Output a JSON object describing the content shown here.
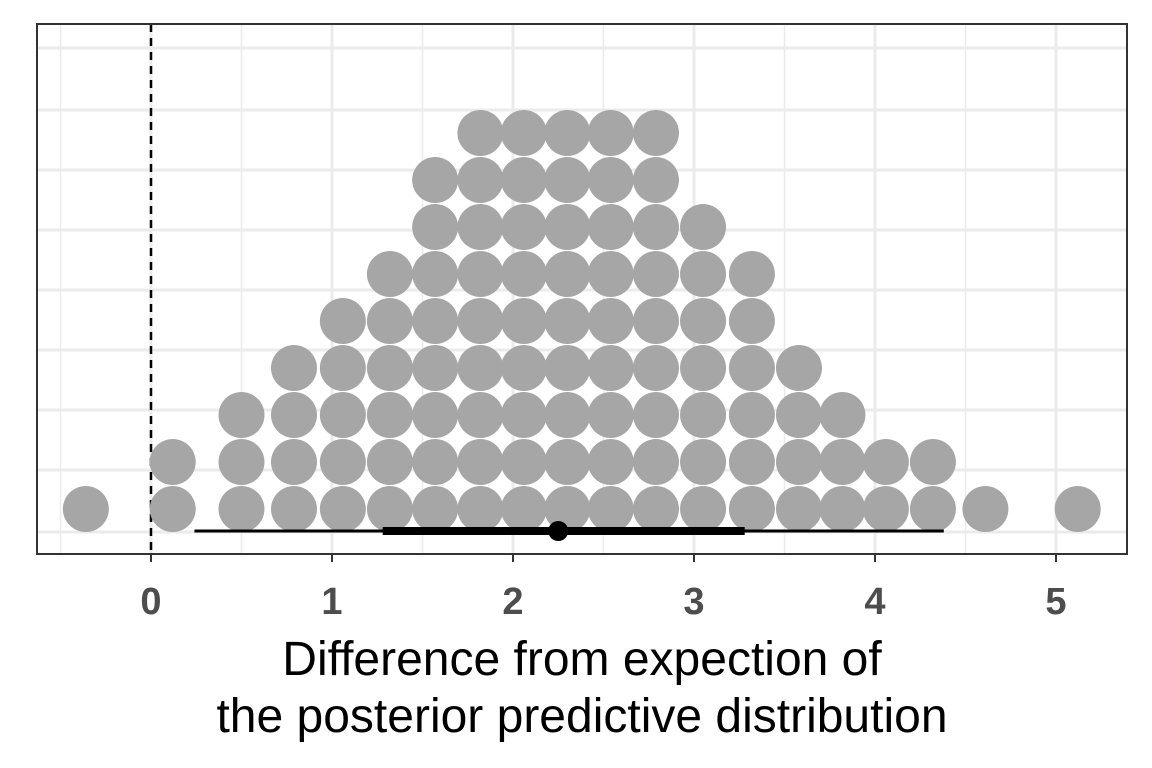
{
  "chart_data": {
    "type": "dotplot",
    "xlabel_lines": [
      "Difference from expection of",
      "the posterior predictive distribution"
    ],
    "xlim": [
      -0.5,
      5.4
    ],
    "x_ticks": [
      0,
      1,
      2,
      3,
      4,
      5
    ],
    "x_tick_labels": [
      "0",
      "1",
      "2",
      "3",
      "4",
      "5"
    ],
    "reference_line": {
      "x": 0,
      "style": "dashed"
    },
    "grid": true,
    "dot_color": "#a6a6a6",
    "stacks": [
      {
        "x": -0.36,
        "count": 1
      },
      {
        "x": 0.12,
        "count": 2
      },
      {
        "x": 0.5,
        "count": 3
      },
      {
        "x": 0.79,
        "count": 4
      },
      {
        "x": 1.06,
        "count": 5
      },
      {
        "x": 1.32,
        "count": 6
      },
      {
        "x": 1.57,
        "count": 8
      },
      {
        "x": 1.82,
        "count": 9
      },
      {
        "x": 2.06,
        "count": 9
      },
      {
        "x": 2.3,
        "count": 9
      },
      {
        "x": 2.54,
        "count": 9
      },
      {
        "x": 2.79,
        "count": 9
      },
      {
        "x": 3.05,
        "count": 7
      },
      {
        "x": 3.32,
        "count": 6
      },
      {
        "x": 3.58,
        "count": 4
      },
      {
        "x": 3.82,
        "count": 3
      },
      {
        "x": 4.06,
        "count": 2
      },
      {
        "x": 4.32,
        "count": 2
      },
      {
        "x": 4.61,
        "count": 1
      },
      {
        "x": 5.12,
        "count": 1
      }
    ],
    "interval": {
      "point": 2.25,
      "inner": [
        1.28,
        3.28
      ],
      "outer": [
        0.24,
        4.38
      ]
    }
  }
}
